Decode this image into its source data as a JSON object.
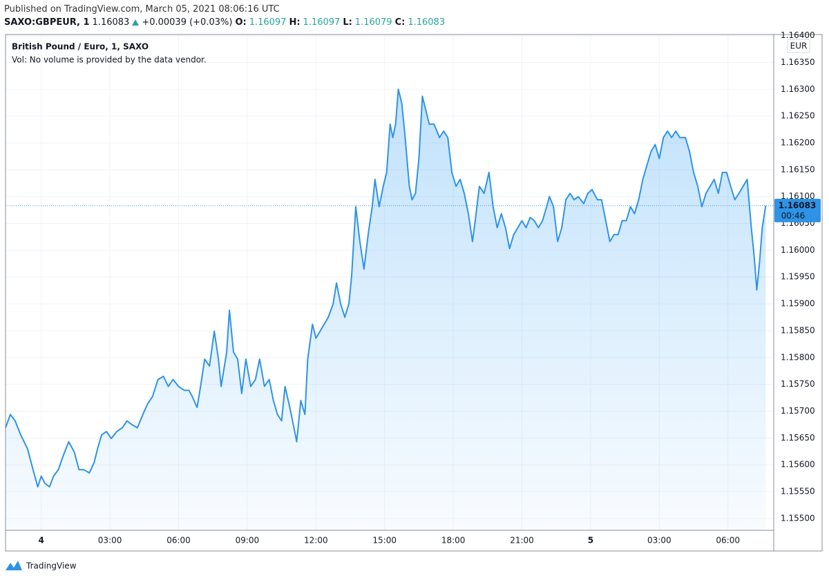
{
  "chart_data": {
    "type": "area",
    "published": "Published on TradingView.com, March 05, 2021 08:06:16 UTC",
    "symbol": "SAXO:GBPEUR, 1",
    "last": 1.16083,
    "change": "+0.00039 (+0.03%)",
    "ohlc": [
      {
        "label": "O:",
        "value": 1.16097
      },
      {
        "label": "H:",
        "value": 1.16097
      },
      {
        "label": "L:",
        "value": 1.16079
      },
      {
        "label": "C:",
        "value": 1.16083
      }
    ],
    "title": "British Pound / Euro, 1, SAXO",
    "subtitle": "Vol: No volume is provided by the data vendor.",
    "currency": "EUR",
    "countdown": "00:46",
    "brand": "TradingView",
    "color": "#2e93e6",
    "grid": true,
    "x": [
      -1.56,
      -1.35,
      -1.14,
      -0.9,
      -0.6,
      -0.36,
      -0.15,
      0,
      0.15,
      0.36,
      0.54,
      0.75,
      0.96,
      1.2,
      1.44,
      1.65,
      1.86,
      2.1,
      2.31,
      2.46,
      2.64,
      2.85,
      3.06,
      3.3,
      3.54,
      3.75,
      3.96,
      4.2,
      4.44,
      4.65,
      4.86,
      5.1,
      5.34,
      5.55,
      5.76,
      6.0,
      6.24,
      6.45,
      6.6,
      6.81,
      6.96,
      7.14,
      7.35,
      7.56,
      7.74,
      7.86,
      8.1,
      8.22,
      8.4,
      8.58,
      8.76,
      8.94,
      9.15,
      9.36,
      9.54,
      9.75,
      9.96,
      10.14,
      10.32,
      10.5,
      10.65,
      10.86,
      11.04,
      11.16,
      11.34,
      11.52,
      11.64,
      11.85,
      12.0,
      12.18,
      12.36,
      12.54,
      12.75,
      12.9,
      13.08,
      13.26,
      13.44,
      13.56,
      13.74,
      13.92,
      14.1,
      14.28,
      14.46,
      14.58,
      14.76,
      14.94,
      15.09,
      15.24,
      15.36,
      15.48,
      15.6,
      15.75,
      15.9,
      16.08,
      16.2,
      16.35,
      16.5,
      16.65,
      16.8,
      16.95,
      17.16,
      17.4,
      17.58,
      17.76,
      17.94,
      18.12,
      18.3,
      18.48,
      18.66,
      18.84,
      18.96,
      19.14,
      19.35,
      19.56,
      19.74,
      19.92,
      20.1,
      20.28,
      20.46,
      20.64,
      20.82,
      21.0,
      21.18,
      21.36,
      21.54,
      21.72,
      21.9,
      22.08,
      22.2,
      22.38,
      22.56,
      22.74,
      22.92,
      23.1,
      23.28,
      23.46,
      23.7,
      23.88,
      24.06,
      24.3,
      24.48,
      24.66,
      24.84,
      25.02,
      25.2,
      25.38,
      25.56,
      25.74,
      25.92,
      26.1,
      26.28,
      26.46,
      26.64,
      26.82,
      27.0,
      27.18,
      27.36,
      27.54,
      27.72,
      27.9,
      28.14,
      28.32,
      28.5,
      28.68,
      28.86,
      29.04,
      29.22,
      29.4,
      29.58,
      29.76,
      29.94,
      30.12,
      30.3,
      30.48,
      30.66,
      30.84,
      31.02,
      31.14,
      31.26,
      31.38,
      31.5,
      31.65
    ],
    "values": [
      1.15669,
      1.15694,
      1.15682,
      1.15656,
      1.1563,
      1.15591,
      1.15559,
      1.15579,
      1.15566,
      1.15559,
      1.15579,
      1.15591,
      1.15617,
      1.15643,
      1.15624,
      1.15591,
      1.15591,
      1.15585,
      1.15604,
      1.1563,
      1.15656,
      1.15662,
      1.15649,
      1.15662,
      1.15669,
      1.15682,
      1.15675,
      1.15669,
      1.15694,
      1.15714,
      1.15727,
      1.15759,
      1.15765,
      1.15746,
      1.15759,
      1.15746,
      1.15739,
      1.15739,
      1.15727,
      1.15707,
      1.15746,
      1.15797,
      1.15784,
      1.15849,
      1.15797,
      1.15746,
      1.1581,
      1.15888,
      1.1581,
      1.15797,
      1.15733,
      1.15797,
      1.15746,
      1.15759,
      1.15797,
      1.15746,
      1.15759,
      1.1572,
      1.15694,
      1.15682,
      1.15746,
      1.15707,
      1.15669,
      1.15643,
      1.1572,
      1.15694,
      1.15797,
      1.15862,
      1.15836,
      1.15849,
      1.15862,
      1.15875,
      1.159,
      1.15939,
      1.159,
      1.15875,
      1.159,
      1.15952,
      1.16081,
      1.16016,
      1.15965,
      1.16029,
      1.16081,
      1.16132,
      1.16081,
      1.16119,
      1.16145,
      1.16235,
      1.1621,
      1.16235,
      1.163,
      1.16274,
      1.1621,
      1.16119,
      1.16094,
      1.16106,
      1.16171,
      1.16287,
      1.16261,
      1.16235,
      1.16235,
      1.1621,
      1.16222,
      1.1621,
      1.16145,
      1.16119,
      1.16132,
      1.16106,
      1.16068,
      1.16016,
      1.16055,
      1.16119,
      1.16106,
      1.16145,
      1.16081,
      1.16042,
      1.16068,
      1.16042,
      1.16003,
      1.16029,
      1.16042,
      1.16055,
      1.16042,
      1.16061,
      1.16055,
      1.16042,
      1.16055,
      1.16081,
      1.161,
      1.16081,
      1.16016,
      1.16042,
      1.16094,
      1.16106,
      1.16094,
      1.161,
      1.16087,
      1.16106,
      1.16113,
      1.16094,
      1.16094,
      1.16055,
      1.16016,
      1.16029,
      1.16029,
      1.16055,
      1.16055,
      1.16081,
      1.16068,
      1.16094,
      1.16132,
      1.16158,
      1.16184,
      1.16197,
      1.16171,
      1.1621,
      1.16222,
      1.1621,
      1.16222,
      1.1621,
      1.1621,
      1.16184,
      1.16145,
      1.16119,
      1.16081,
      1.16106,
      1.16119,
      1.16132,
      1.16106,
      1.16145,
      1.16145,
      1.16119,
      1.16094,
      1.16106,
      1.16119,
      1.16132,
      1.16042,
      1.15991,
      1.15926,
      1.15978,
      1.16042,
      1.16083
    ],
    "xlim": [
      -1.56,
      32.0
    ],
    "xticks": [
      {
        "value": 0,
        "label": "4"
      },
      {
        "value": 3,
        "label": "03:00"
      },
      {
        "value": 6,
        "label": "06:00"
      },
      {
        "value": 9,
        "label": "09:00"
      },
      {
        "value": 12,
        "label": "12:00"
      },
      {
        "value": 15,
        "label": "15:00"
      },
      {
        "value": 18,
        "label": "18:00"
      },
      {
        "value": 21,
        "label": "21:00"
      },
      {
        "value": 24,
        "label": "5"
      },
      {
        "value": 27,
        "label": "03:00"
      },
      {
        "value": 30,
        "label": "06:00"
      }
    ],
    "ylim": [
      1.15478,
      1.16402
    ],
    "yticks": [
      {
        "value": 1.155,
        "label": "1.15500"
      },
      {
        "value": 1.1555,
        "label": "1.15550"
      },
      {
        "value": 1.156,
        "label": "1.15600"
      },
      {
        "value": 1.1565,
        "label": "1.15650"
      },
      {
        "value": 1.157,
        "label": "1.15700"
      },
      {
        "value": 1.1575,
        "label": "1.15750"
      },
      {
        "value": 1.158,
        "label": "1.15800"
      },
      {
        "value": 1.1585,
        "label": "1.15850"
      },
      {
        "value": 1.159,
        "label": "1.15900"
      },
      {
        "value": 1.1595,
        "label": "1.15950"
      },
      {
        "value": 1.16,
        "label": "1.16000"
      },
      {
        "value": 1.1605,
        "label": "1.16050"
      },
      {
        "value": 1.161,
        "label": "1.16100"
      },
      {
        "value": 1.1615,
        "label": "1.16150"
      },
      {
        "value": 1.162,
        "label": "1.16200"
      },
      {
        "value": 1.1625,
        "label": "1.16250"
      },
      {
        "value": 1.163,
        "label": "1.16300"
      },
      {
        "value": 1.1635,
        "label": "1.16350"
      },
      {
        "value": 1.164,
        "label": "1.16400"
      }
    ]
  }
}
